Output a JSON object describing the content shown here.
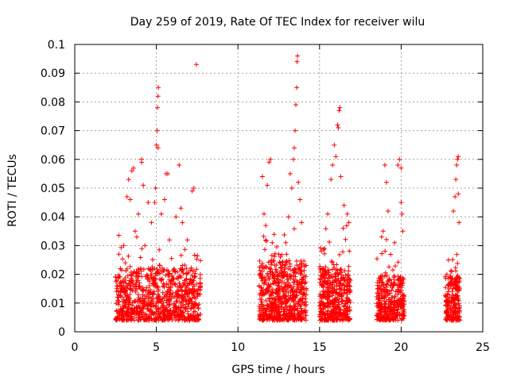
{
  "chart_data": {
    "type": "scatter",
    "title": "Day 259 of 2019, Rate Of TEC Index for receiver wilu",
    "xlabel": "GPS time / hours",
    "ylabel": "ROTI / TECUs",
    "xlim": [
      0,
      25
    ],
    "ylim": [
      0,
      0.1
    ],
    "x_ticks": [
      "0",
      "5",
      "10",
      "15",
      "20",
      "25"
    ],
    "y_ticks": [
      "0",
      "0.01",
      "0.02",
      "0.03",
      "0.04",
      "0.05",
      "0.06",
      "0.07",
      "0.08",
      "0.09",
      "0.1"
    ],
    "grid": true,
    "marker": "+",
    "color": "#ff0000",
    "clusters": [
      {
        "x_range": [
          2.5,
          7.7
        ],
        "base_y": [
          0.004,
          0.018
        ],
        "points": 900
      },
      {
        "x_range": [
          11.3,
          14.2
        ],
        "base_y": [
          0.004,
          0.02
        ],
        "points": 650
      },
      {
        "x_range": [
          15.0,
          16.9
        ],
        "base_y": [
          0.004,
          0.018
        ],
        "points": 450
      },
      {
        "x_range": [
          18.5,
          20.2
        ],
        "base_y": [
          0.004,
          0.016
        ],
        "points": 350
      },
      {
        "x_range": [
          22.7,
          23.6
        ],
        "base_y": [
          0.004,
          0.016
        ],
        "points": 220
      }
    ],
    "points": [
      [
        2.7,
        0.027
      ],
      [
        2.8,
        0.022
      ],
      [
        3.0,
        0.03
      ],
      [
        3.1,
        0.024
      ],
      [
        3.2,
        0.047
      ],
      [
        3.3,
        0.053
      ],
      [
        3.4,
        0.046
      ],
      [
        3.5,
        0.056
      ],
      [
        3.6,
        0.057
      ],
      [
        3.7,
        0.035
      ],
      [
        3.8,
        0.033
      ],
      [
        3.9,
        0.041
      ],
      [
        4.1,
        0.059
      ],
      [
        4.1,
        0.06
      ],
      [
        4.2,
        0.051
      ],
      [
        4.3,
        0.03
      ],
      [
        4.5,
        0.045
      ],
      [
        4.7,
        0.038
      ],
      [
        4.9,
        0.045
      ],
      [
        4.95,
        0.05
      ],
      [
        5.0,
        0.065
      ],
      [
        5.05,
        0.07
      ],
      [
        5.07,
        0.078
      ],
      [
        5.1,
        0.082
      ],
      [
        5.12,
        0.085
      ],
      [
        5.1,
        0.064
      ],
      [
        5.3,
        0.041
      ],
      [
        5.5,
        0.046
      ],
      [
        5.6,
        0.055
      ],
      [
        5.7,
        0.055
      ],
      [
        5.8,
        0.032
      ],
      [
        6.2,
        0.04
      ],
      [
        6.4,
        0.058
      ],
      [
        6.5,
        0.043
      ],
      [
        6.6,
        0.038
      ],
      [
        6.9,
        0.032
      ],
      [
        7.2,
        0.049
      ],
      [
        7.3,
        0.05
      ],
      [
        7.45,
        0.093
      ],
      [
        11.5,
        0.054
      ],
      [
        11.6,
        0.041
      ],
      [
        11.7,
        0.037
      ],
      [
        11.8,
        0.051
      ],
      [
        11.9,
        0.059
      ],
      [
        12.0,
        0.06
      ],
      [
        12.1,
        0.031
      ],
      [
        12.5,
        0.027
      ],
      [
        12.6,
        0.026
      ],
      [
        13.1,
        0.04
      ],
      [
        13.2,
        0.055
      ],
      [
        13.3,
        0.05
      ],
      [
        13.4,
        0.06
      ],
      [
        13.45,
        0.064
      ],
      [
        13.5,
        0.07
      ],
      [
        13.55,
        0.079
      ],
      [
        13.6,
        0.085
      ],
      [
        13.62,
        0.094
      ],
      [
        13.65,
        0.096
      ],
      [
        13.7,
        0.052
      ],
      [
        13.8,
        0.046
      ],
      [
        13.9,
        0.038
      ],
      [
        15.3,
        0.029
      ],
      [
        15.5,
        0.041
      ],
      [
        15.7,
        0.053
      ],
      [
        15.8,
        0.058
      ],
      [
        15.9,
        0.065
      ],
      [
        16.0,
        0.061
      ],
      [
        16.1,
        0.072
      ],
      [
        16.15,
        0.071
      ],
      [
        16.2,
        0.077
      ],
      [
        16.25,
        0.078
      ],
      [
        16.3,
        0.054
      ],
      [
        16.5,
        0.044
      ],
      [
        16.7,
        0.041
      ],
      [
        16.8,
        0.038
      ],
      [
        18.8,
        0.033
      ],
      [
        18.9,
        0.035
      ],
      [
        19.0,
        0.058
      ],
      [
        19.1,
        0.052
      ],
      [
        19.2,
        0.042
      ],
      [
        19.6,
        0.031
      ],
      [
        19.8,
        0.058
      ],
      [
        19.9,
        0.06
      ],
      [
        20.0,
        0.057
      ],
      [
        20.0,
        0.045
      ],
      [
        20.05,
        0.041
      ],
      [
        20.1,
        0.035
      ],
      [
        22.8,
        0.02
      ],
      [
        22.9,
        0.025
      ],
      [
        23.1,
        0.021
      ],
      [
        23.2,
        0.042
      ],
      [
        23.3,
        0.047
      ],
      [
        23.35,
        0.053
      ],
      [
        23.4,
        0.058
      ],
      [
        23.45,
        0.06
      ],
      [
        23.5,
        0.061
      ],
      [
        23.5,
        0.048
      ],
      [
        23.55,
        0.038
      ]
    ]
  }
}
